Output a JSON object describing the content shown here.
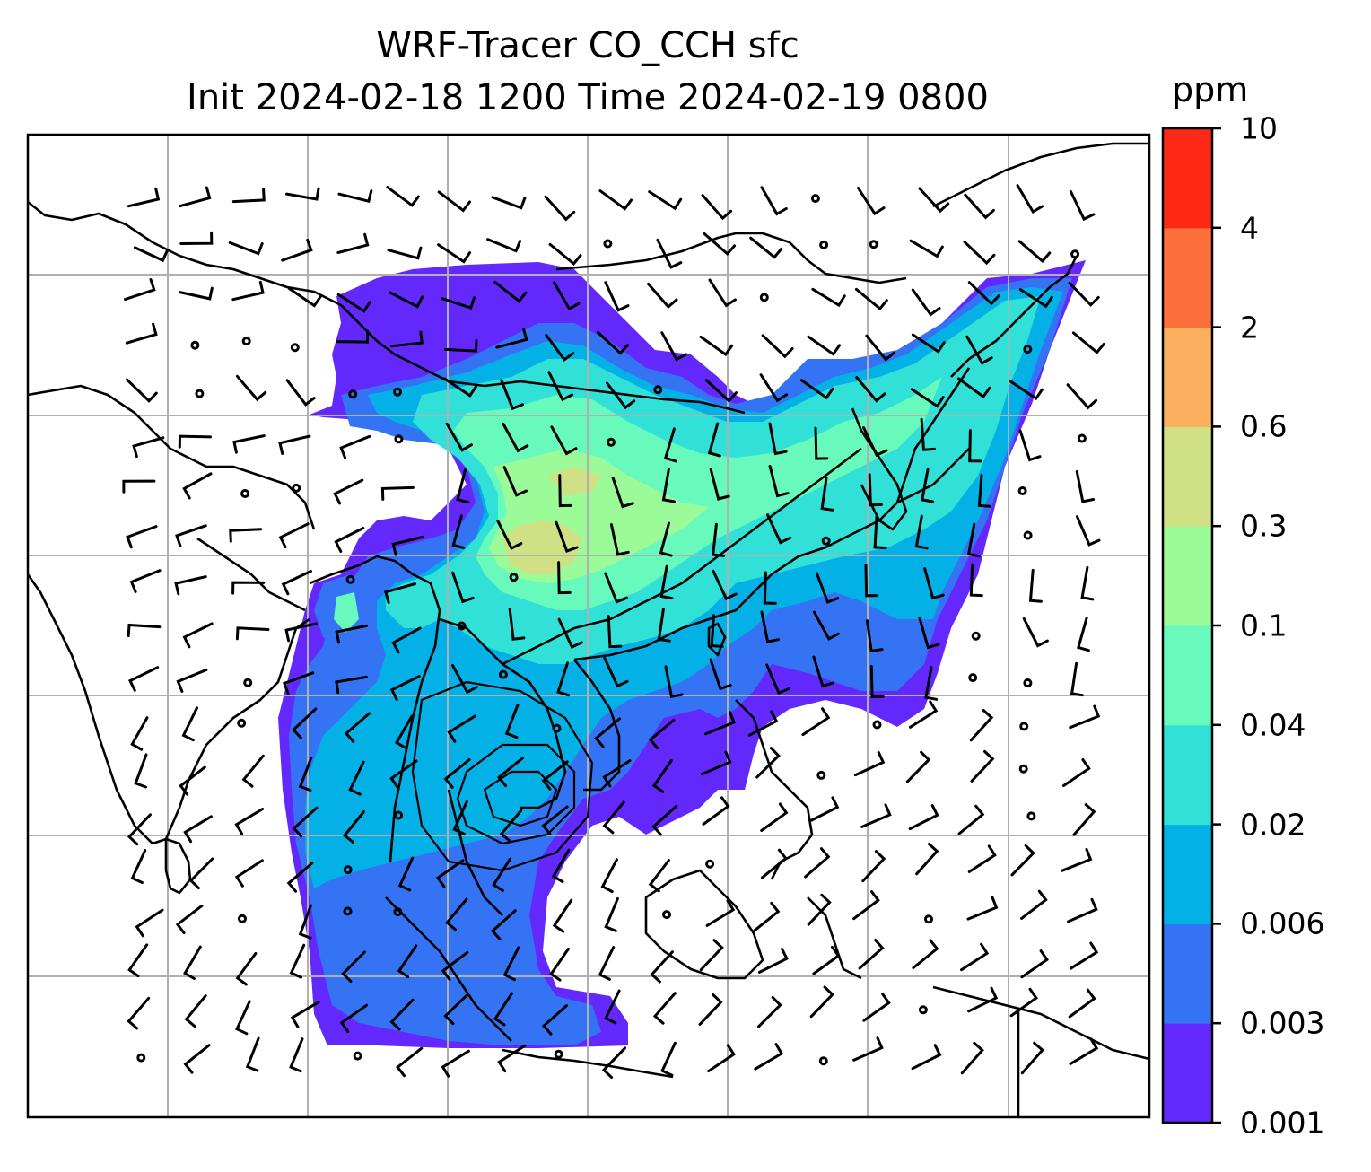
{
  "title": {
    "line1": "WRF-Tracer CO_CCH sfc",
    "line2": "Init 2024-02-18 1200 Time 2024-02-19 0800"
  },
  "colorbar": {
    "units": "ppm",
    "ticks": [
      "0.001",
      "0.003",
      "0.006",
      "0.02",
      "0.04",
      "0.1",
      "0.3",
      "0.6",
      "2",
      "4",
      "10"
    ],
    "colors": [
      "#6328fc",
      "#3473f4",
      "#04b1e6",
      "#31e0d6",
      "#68f9bc",
      "#9bfb99",
      "#cfe184",
      "#fdaf60",
      "#fd6f3b",
      "#fe2914"
    ]
  },
  "map": {
    "field": "CO_CCH surface concentration",
    "overlays": [
      "coastlines",
      "country borders",
      "lat-lon gridlines",
      "wind barbs",
      "terrain contours"
    ],
    "gridline_color": "#b0b0b0"
  }
}
